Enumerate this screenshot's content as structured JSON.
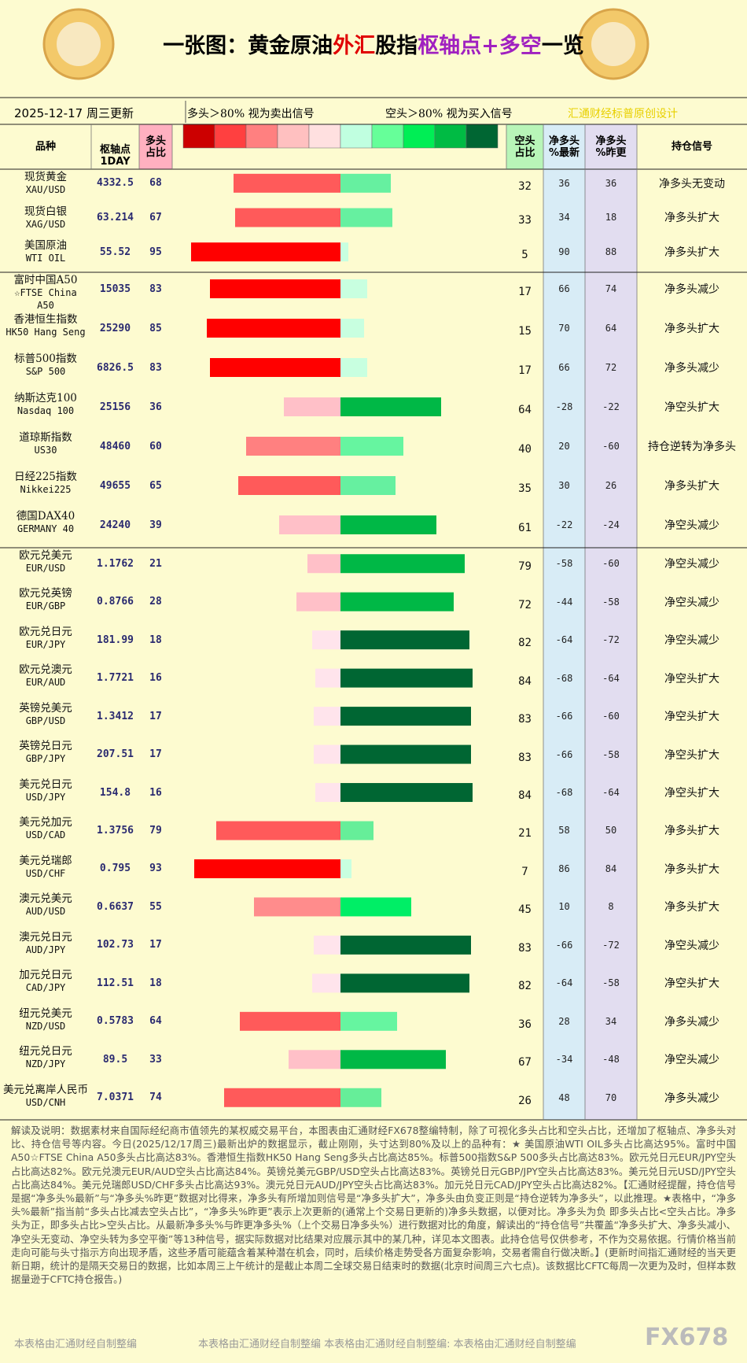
{
  "header": {
    "title": [
      "一张图：黄金原油",
      "外汇",
      "股指",
      "枢轴点+多空",
      "一览"
    ],
    "date": "2025-12-17 周三更新",
    "legend_long": "多头＞80% 视为卖出信号",
    "legend_short": "空头＞80% 视为买入信号",
    "credit": "汇通财经标普原创设计",
    "legend_colors": [
      "#cc0000",
      "#ff4040",
      "#ff8080",
      "#ffc0c0",
      "#ffe0e0",
      "#c0ffe0",
      "#66ff99",
      "#00ee55",
      "#00bb44",
      "#006633"
    ]
  },
  "columns": {
    "name": "品种",
    "pivot": "枢轴点\n1DAY",
    "long": "多头\n占比",
    "short": "空头\n占比",
    "net_latest": "净多头\n%最新",
    "net_prev": "净多头\n%昨更",
    "signal": "持仓信号"
  },
  "groups": [
    [
      {
        "name": "现货黄金",
        "code": "XAU/USD",
        "pivot": 4332.5,
        "long": 68,
        "short": 32,
        "net_latest": 36,
        "net_prev": 36,
        "signal": "净多头无变动",
        "long_color": "#ff5a5a",
        "short_color": "#66f0a0"
      },
      {
        "name": "现货白银",
        "code": "XAG/USD",
        "pivot": 63.214,
        "long": 67,
        "short": 33,
        "net_latest": 34,
        "net_prev": 18,
        "signal": "净多头扩大",
        "long_color": "#ff5a5a",
        "short_color": "#66f0a0"
      },
      {
        "name": "美国原油",
        "code": "WTI OIL",
        "pivot": 55.52,
        "long": 95,
        "short": 5,
        "net_latest": 90,
        "net_prev": 88,
        "signal": "净多头扩大",
        "long_color": "#ff0000",
        "short_color": "#c8ffe0"
      }
    ],
    [
      {
        "name": "富时中国A50",
        "code": "☆FTSE China A50",
        "pivot": 15035,
        "long": 83,
        "short": 17,
        "net_latest": 66,
        "net_prev": 74,
        "signal": "净多头减少",
        "long_color": "#ff0000",
        "short_color": "#c8ffe0"
      },
      {
        "name": "香港恒生指数",
        "code": "HK50 Hang Seng",
        "pivot": 25290,
        "long": 85,
        "short": 15,
        "net_latest": 70,
        "net_prev": 64,
        "signal": "净多头扩大",
        "long_color": "#ff0000",
        "short_color": "#c8ffe0"
      },
      {
        "name": "标普500指数",
        "code": "S&P 500",
        "pivot": 6826.5,
        "long": 83,
        "short": 17,
        "net_latest": 66,
        "net_prev": 72,
        "signal": "净多头减少",
        "long_color": "#ff0000",
        "short_color": "#c8ffe0"
      },
      {
        "name": "纳斯达克100",
        "code": "Nasdaq 100",
        "pivot": 25156,
        "long": 36,
        "short": 64,
        "net_latest": -28,
        "net_prev": -22,
        "signal": "净空头扩大",
        "long_color": "#ffc0c8",
        "short_color": "#00b846"
      },
      {
        "name": "道琼斯指数",
        "code": "US30",
        "pivot": 48460,
        "long": 60,
        "short": 40,
        "net_latest": 20,
        "net_prev": -60,
        "signal": "持仓逆转为净多头",
        "long_color": "#ff8080",
        "short_color": "#66f5a0"
      },
      {
        "name": "日经225指数",
        "code": "Nikkei225",
        "pivot": 49655,
        "long": 65,
        "short": 35,
        "net_latest": 30,
        "net_prev": 26,
        "signal": "净多头扩大",
        "long_color": "#ff5a5a",
        "short_color": "#66f0a0"
      },
      {
        "name": "德国DAX40",
        "code": "GERMANY 40",
        "pivot": 24240,
        "long": 39,
        "short": 61,
        "net_latest": -22,
        "net_prev": -24,
        "signal": "净空头减少",
        "long_color": "#ffc0c8",
        "short_color": "#00b846"
      }
    ],
    [
      {
        "name": "欧元兑美元",
        "code": "EUR/USD",
        "pivot": 1.1762,
        "long": 21,
        "short": 79,
        "net_latest": -58,
        "net_prev": -60,
        "signal": "净空头减少",
        "long_color": "#ffc0c8",
        "short_color": "#00b846"
      },
      {
        "name": "欧元兑英镑",
        "code": "EUR/GBP",
        "pivot": 0.8766,
        "long": 28,
        "short": 72,
        "net_latest": -44,
        "net_prev": -58,
        "signal": "净空头减少",
        "long_color": "#ffc0c8",
        "short_color": "#00b846"
      },
      {
        "name": "欧元兑日元",
        "code": "EUR/JPY",
        "pivot": 181.99,
        "long": 18,
        "short": 82,
        "net_latest": -64,
        "net_prev": -72,
        "signal": "净空头减少",
        "long_color": "#ffe4ec",
        "short_color": "#006633"
      },
      {
        "name": "欧元兑澳元",
        "code": "EUR/AUD",
        "pivot": 1.7721,
        "long": 16,
        "short": 84,
        "net_latest": -68,
        "net_prev": -64,
        "signal": "净空头扩大",
        "long_color": "#ffe4ec",
        "short_color": "#006633"
      },
      {
        "name": "英镑兑美元",
        "code": "GBP/USD",
        "pivot": 1.3412,
        "long": 17,
        "short": 83,
        "net_latest": -66,
        "net_prev": -60,
        "signal": "净空头扩大",
        "long_color": "#ffe4ec",
        "short_color": "#006633"
      },
      {
        "name": "英镑兑日元",
        "code": "GBP/JPY",
        "pivot": 207.51,
        "long": 17,
        "short": 83,
        "net_latest": -66,
        "net_prev": -58,
        "signal": "净空头扩大",
        "long_color": "#ffe4ec",
        "short_color": "#006633"
      },
      {
        "name": "美元兑日元",
        "code": "USD/JPY",
        "pivot": 154.8,
        "long": 16,
        "short": 84,
        "net_latest": -68,
        "net_prev": -64,
        "signal": "净空头扩大",
        "long_color": "#ffe4ec",
        "short_color": "#006633"
      },
      {
        "name": "美元兑加元",
        "code": "USD/CAD",
        "pivot": 1.3756,
        "long": 79,
        "short": 21,
        "net_latest": 58,
        "net_prev": 50,
        "signal": "净多头扩大",
        "long_color": "#ff5a5a",
        "short_color": "#66ee99"
      },
      {
        "name": "美元兑瑞郎",
        "code": "USD/CHF",
        "pivot": 0.795,
        "long": 93,
        "short": 7,
        "net_latest": 86,
        "net_prev": 84,
        "signal": "净多头扩大",
        "long_color": "#ff0000",
        "short_color": "#c8ffe0"
      },
      {
        "name": "澳元兑美元",
        "code": "AUD/USD",
        "pivot": 0.6637,
        "long": 55,
        "short": 45,
        "net_latest": 10,
        "net_prev": 8,
        "signal": "净多头扩大",
        "long_color": "#ff8c8c",
        "short_color": "#00ee66"
      },
      {
        "name": "澳元兑日元",
        "code": "AUD/JPY",
        "pivot": 102.73,
        "long": 17,
        "short": 83,
        "net_latest": -66,
        "net_prev": -72,
        "signal": "净空头减少",
        "long_color": "#ffe4ec",
        "short_color": "#006633"
      },
      {
        "name": "加元兑日元",
        "code": "CAD/JPY",
        "pivot": 112.51,
        "long": 18,
        "short": 82,
        "net_latest": -64,
        "net_prev": -58,
        "signal": "净空头扩大",
        "long_color": "#ffe4ec",
        "short_color": "#006633"
      },
      {
        "name": "纽元兑美元",
        "code": "NZD/USD",
        "pivot": 0.5783,
        "long": 64,
        "short": 36,
        "net_latest": 28,
        "net_prev": 34,
        "signal": "净多头减少",
        "long_color": "#ff5a5a",
        "short_color": "#66f5a0"
      },
      {
        "name": "纽元兑日元",
        "code": "NZD/JPY",
        "pivot": 89.5,
        "long": 33,
        "short": 67,
        "net_latest": -34,
        "net_prev": -48,
        "signal": "净空头减少",
        "long_color": "#ffc0c8",
        "short_color": "#00b846"
      },
      {
        "name": "美元兑离岸人民币",
        "code": "USD/CNH",
        "pivot": 7.0371,
        "long": 74,
        "short": 26,
        "net_latest": 48,
        "net_prev": 70,
        "signal": "净多头减少",
        "long_color": "#ff5a5a",
        "short_color": "#66ee99"
      }
    ]
  ],
  "footer": {
    "text": "解读及说明：数据素材来自国际经纪商市值领先的某权威交易平台，本图表由汇通财经FX678整编特制，除了可视化多头占比和空头占比，还增加了枢轴点、净多头对比、持仓信号等内容。今日(2025/12/17周三)最新出炉的数据显示，截止刚刚，头寸达到80%及以上的品种有：★ 美国原油WTI OIL多头占比高达95%。富时中国A50☆FTSE China A50多头占比高达83%。香港恒生指数HK50 Hang Seng多头占比高达85%。标普500指数S&P 500多头占比高达83%。欧元兑日元EUR/JPY空头占比高达82%。欧元兑澳元EUR/AUD空头占比高达84%。英镑兑美元GBP/USD空头占比高达83%。英镑兑日元GBP/JPY空头占比高达83%。美元兑日元USD/JPY空头占比高达84%。美元兑瑞郎USD/CHF多头占比高达93%。澳元兑日元AUD/JPY空头占比高达83%。加元兑日元CAD/JPY空头占比高达82%。【汇通财经提醒，持仓信号是据“净多头%最新”与“净多头%昨更”数据对比得来，净多头有所增加则信号是“净多头扩大”，净多头由负变正则是“持仓逆转为净多头”，以此推理。★表格中，“净多头%最新”指当前“多头占比减去空头占比”，“净多头%昨更”表示上次更新的(通常上个交易日更新的)净多头数据，以便对比。净多头为负 即多头占比<空头占比。净多头为正，即多头占比>空头占比。从最新净多头%与昨更净多头%（上个交易日净多头%）进行数据对比的角度，解读出的“持仓信号”共覆盖“净多头扩大、净多头减小、净空头无变动、净空头转为多空平衡”等13种信号，据实际数据对比结果对应展示其中的某几种，详见本文图表。此持仓信号仅供参考，不作为交易依据。行情价格当前走向可能与头寸指示方向出现矛盾，这些矛盾可能蕴含着某种潜在机会，同时，后续价格走势受各方面复杂影响，交易者需自行做决断。】(更新时间指汇通财经的当天更新日期，统计的是隔天交易日的数据，比如本周三上午统计的是截止本周二全球交易日结束时的数据(北京时间周三六七点)。该数据比CFTC每周一次更为及时，但样本数据量逊于CFTC持仓报告。)",
    "watermark_left": "本表格由汇通财经自制整编",
    "watermark_mid": "本表格由汇通财经自制整编   本表格由汇通财经自制整编: 本表格由汇通财经自制整编",
    "logo": "FX678"
  }
}
